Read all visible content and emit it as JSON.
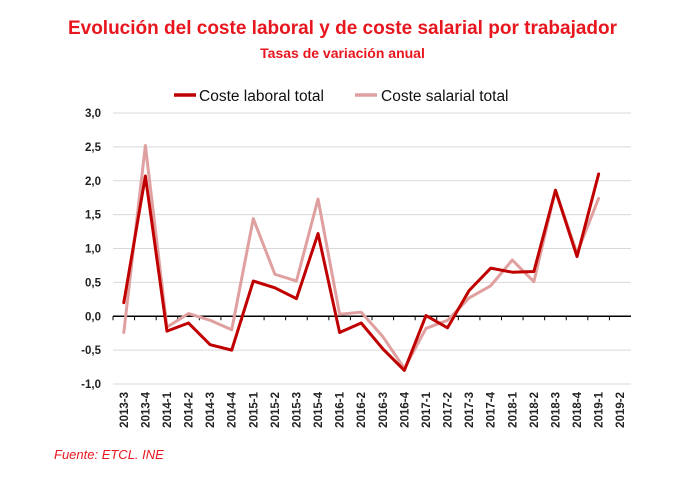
{
  "chart_data": {
    "type": "line",
    "title": "Evolución del coste laboral y de coste salarial por trabajador",
    "subtitle": "Tasas de variación anual",
    "source": "Fuente: ETCL. INE",
    "xlabel": "",
    "ylabel": "",
    "ylim": [
      -1.0,
      3.0
    ],
    "yticks": [
      -1.0,
      -0.5,
      0.0,
      0.5,
      1.0,
      1.5,
      2.0,
      2.5,
      3.0
    ],
    "ytick_labels": [
      "-1,0",
      "-0,5",
      "0,0",
      "0,5",
      "1,0",
      "1,5",
      "2,0",
      "2,5",
      "3,0"
    ],
    "grid": true,
    "legend_position": "top",
    "categories": [
      "2013-3",
      "2013-4",
      "2014-1",
      "2014-2",
      "2014-3",
      "2014-4",
      "2015-1",
      "2015-2",
      "2015-3",
      "2015-4",
      "2016-1",
      "2016-2",
      "2016-3",
      "2016-4",
      "2017-1",
      "2017-2",
      "2017-3",
      "2017-4",
      "2018-1",
      "2018-2",
      "2018-3",
      "2018-4",
      "2019-1",
      "2019-2"
    ],
    "series": [
      {
        "name": "Coste laboral total",
        "color": "#c00000",
        "values": [
          0.2,
          2.07,
          -0.22,
          -0.1,
          -0.42,
          -0.5,
          0.52,
          0.42,
          0.26,
          1.22,
          -0.24,
          -0.1,
          -0.48,
          -0.8,
          0.01,
          -0.17,
          0.38,
          0.71,
          0.65,
          0.66,
          1.86,
          0.88,
          2.1,
          null
        ]
      },
      {
        "name": "Coste salarial total",
        "color": "#e0a0a0",
        "values": [
          -0.24,
          2.52,
          -0.16,
          0.04,
          -0.06,
          -0.2,
          1.44,
          0.62,
          0.52,
          1.73,
          0.03,
          0.06,
          -0.3,
          -0.77,
          -0.18,
          -0.06,
          0.27,
          0.45,
          0.83,
          0.51,
          1.86,
          0.93,
          1.74,
          null
        ]
      }
    ]
  }
}
